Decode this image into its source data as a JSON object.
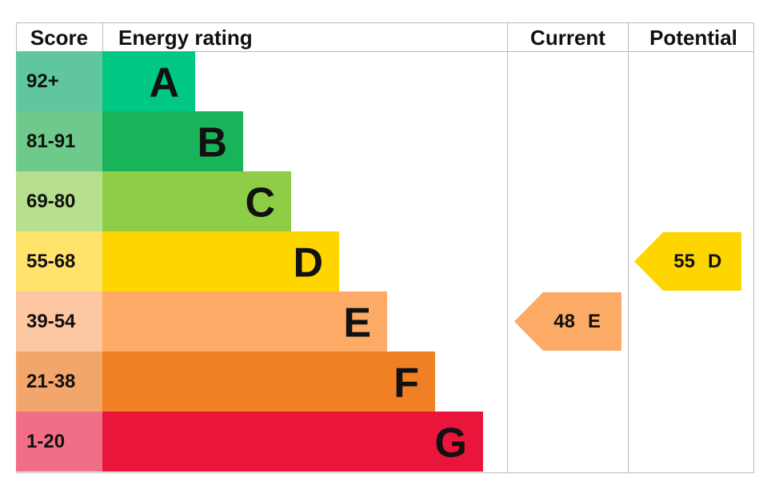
{
  "header": {
    "score": "Score",
    "rating": "Energy rating",
    "current": "Current",
    "potential": "Potential"
  },
  "bands": [
    {
      "score": "92+",
      "letter": "A",
      "color": "#00c781",
      "score_color": "#5fc6a0"
    },
    {
      "score": "81-91",
      "letter": "B",
      "color": "#19b459",
      "score_color": "#6dca8a"
    },
    {
      "score": "69-80",
      "letter": "C",
      "color": "#8dce46",
      "score_color": "#b6e08d"
    },
    {
      "score": "55-68",
      "letter": "D",
      "color": "#ffd500",
      "score_color": "#ffe36c"
    },
    {
      "score": "39-54",
      "letter": "E",
      "color": "#fcaa65",
      "score_color": "#fdc8a1"
    },
    {
      "score": "21-38",
      "letter": "F",
      "color": "#ef8023",
      "score_color": "#f3a66b"
    },
    {
      "score": "1-20",
      "letter": "G",
      "color": "#e9153b",
      "score_color": "#f06f87"
    }
  ],
  "current": {
    "value": 48,
    "band": "E"
  },
  "potential": {
    "value": 55,
    "band": "D"
  }
}
